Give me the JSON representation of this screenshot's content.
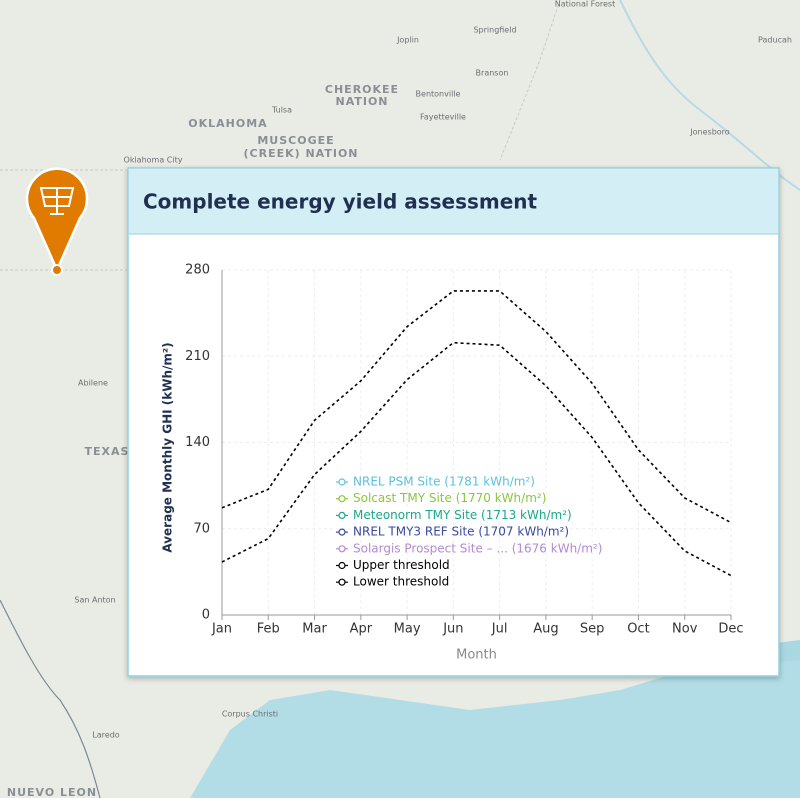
{
  "map": {
    "labels": [
      "National Forest",
      "Springfield",
      "Joplin",
      "Paducah",
      "Branson",
      "CHEROKEE",
      "NATION",
      "Bentonville",
      "Tulsa",
      "Fayetteville",
      "OKLAHOMA",
      "MUSCOGEE",
      "(CREEK) NATION",
      "Jonesboro",
      "Oklahoma City",
      "Abilene",
      "TEXAS",
      "San Anton",
      "Corpus Christi",
      "Laredo",
      "NUEVO LEON"
    ]
  },
  "card": {
    "title": "Complete energy yield assessment"
  },
  "chart_data": {
    "type": "line",
    "categories": [
      "Jan",
      "Feb",
      "Mar",
      "Apr",
      "May",
      "Jun",
      "Jul",
      "Aug",
      "Sep",
      "Oct",
      "Nov",
      "Dec"
    ],
    "x_label": "Month",
    "y_label": "Average Monthly GHI (kWh/m²)",
    "ylim": [
      0,
      280
    ],
    "yticks": [
      0,
      70,
      140,
      210,
      280
    ],
    "grid": true,
    "series": [
      {
        "name": "NREL PSM Site (1781 kWh/m²)",
        "color": "#5bc0de",
        "values": [
          null,
          null,
          null,
          null,
          null,
          null,
          null,
          null,
          null,
          null,
          null,
          null
        ]
      },
      {
        "name": "Solcast TMY Site (1770 kWh/m²)",
        "color": "#8cc63f",
        "values": [
          null,
          null,
          null,
          null,
          null,
          null,
          null,
          null,
          null,
          null,
          null,
          null
        ]
      },
      {
        "name": "Meteonorm TMY Site (1713 kWh/m²)",
        "color": "#1aa88a",
        "values": [
          null,
          null,
          null,
          null,
          null,
          null,
          null,
          null,
          null,
          null,
          null,
          null
        ]
      },
      {
        "name": "NREL TMY3 REF Site (1707 kWh/m²)",
        "color": "#3a4aa0",
        "values": [
          null,
          null,
          null,
          null,
          null,
          null,
          null,
          null,
          null,
          null,
          null,
          null
        ]
      },
      {
        "name": "Solargis Prospect Site – ... (1676 kWh/m²)",
        "color": "#b58ad0",
        "values": [
          null,
          null,
          null,
          null,
          null,
          null,
          null,
          null,
          null,
          null,
          null,
          null
        ]
      },
      {
        "name": "Upper threshold",
        "color": "#000000",
        "dashed": true,
        "values": [
          87,
          102,
          158,
          190,
          234,
          263,
          263,
          230,
          188,
          134,
          95,
          75
        ]
      },
      {
        "name": "Lower threshold",
        "color": "#000000",
        "dashed": true,
        "values": [
          43,
          62,
          114,
          149,
          191,
          221,
          219,
          186,
          144,
          91,
          52,
          32
        ]
      }
    ]
  }
}
